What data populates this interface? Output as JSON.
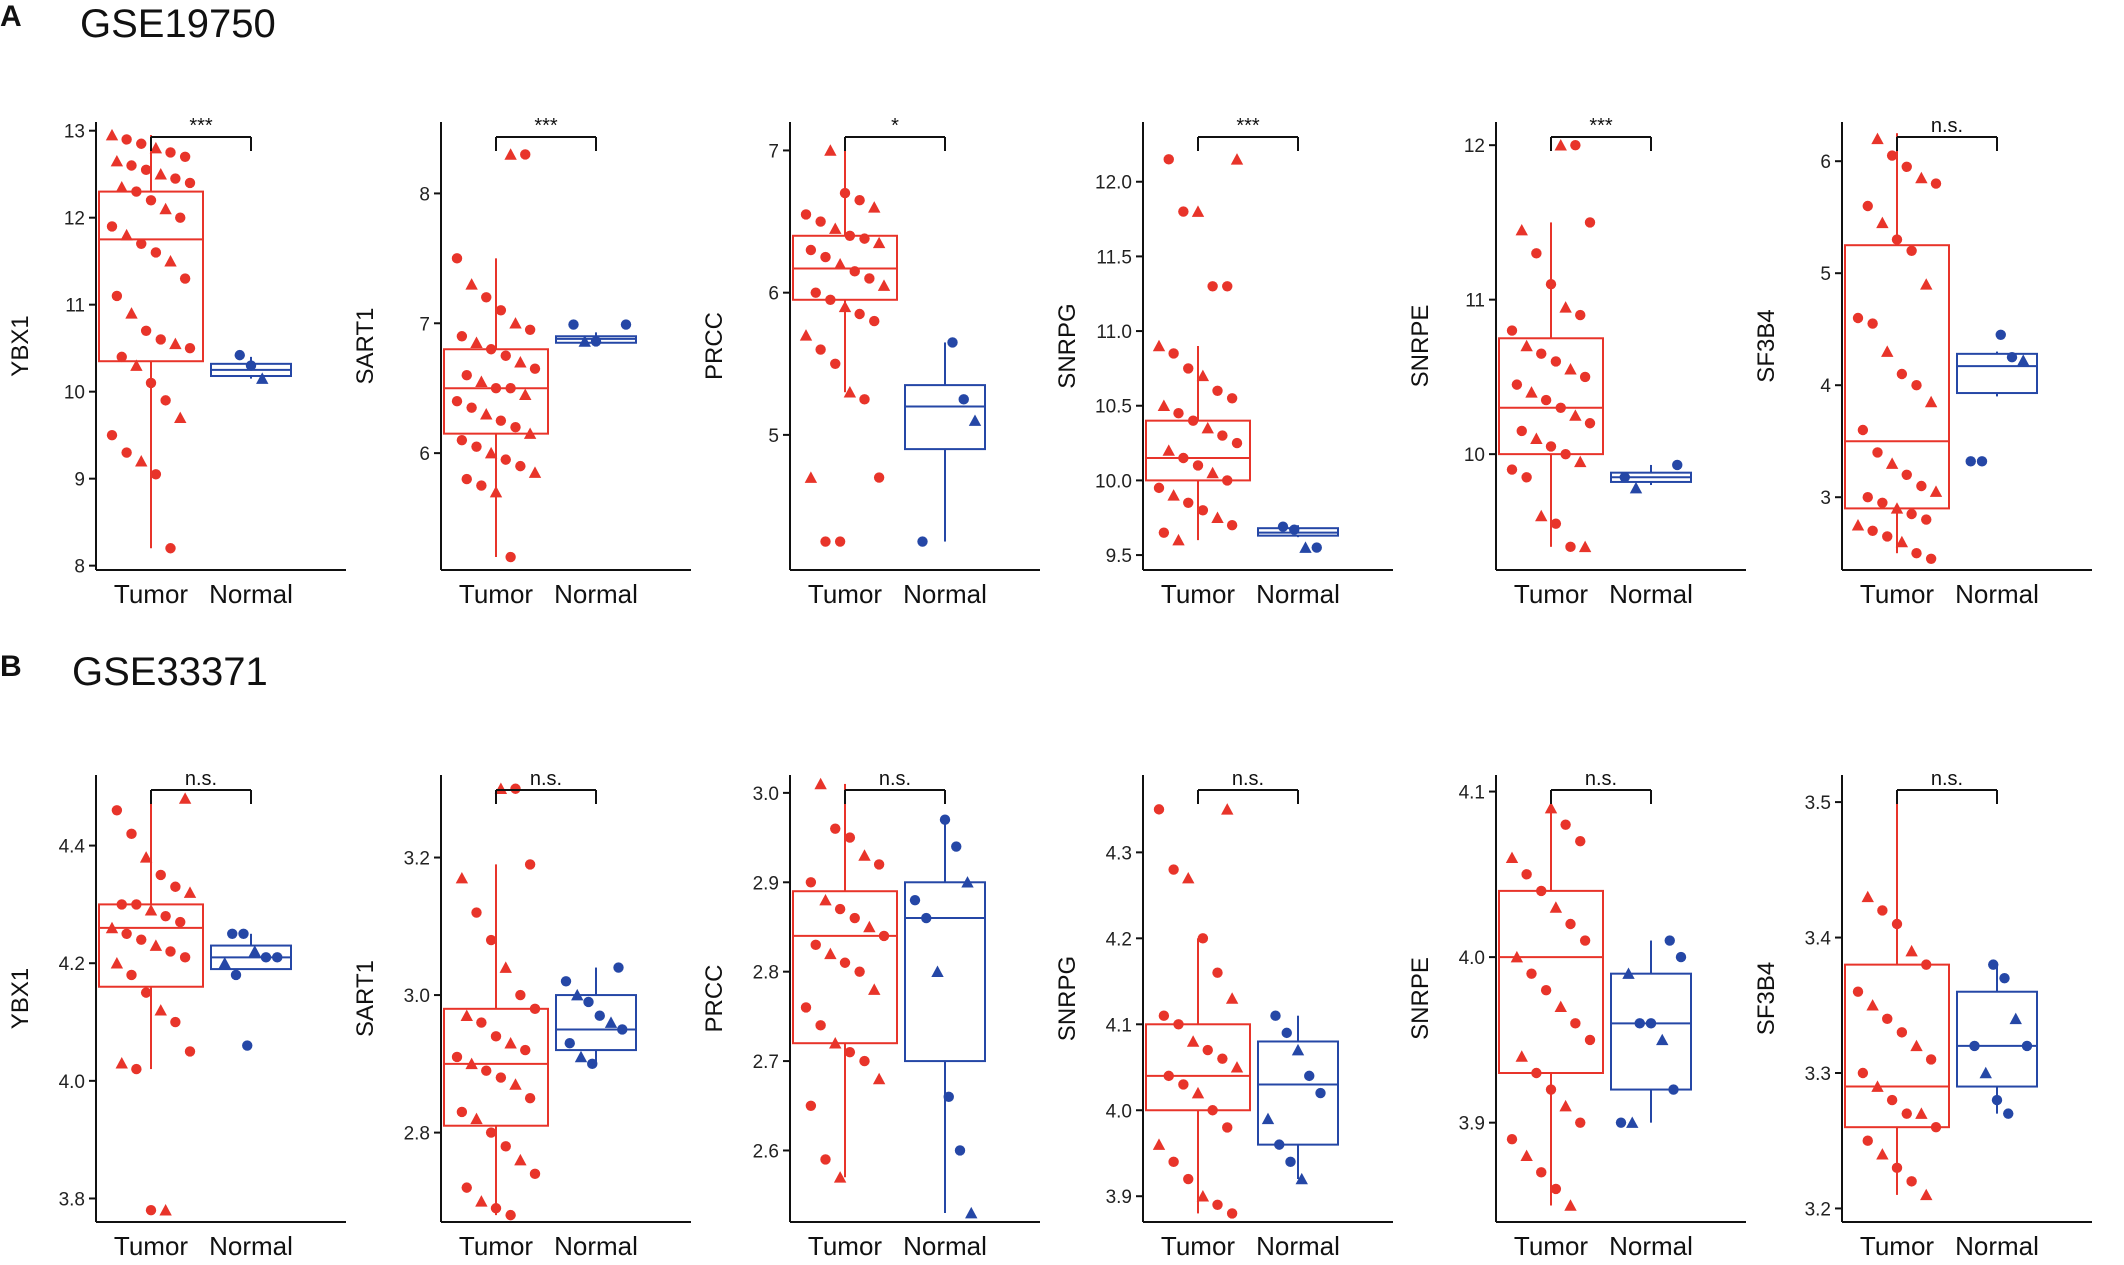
{
  "figure": {
    "colors": {
      "tumor": "#e8342a",
      "normal": "#2547a6",
      "axis": "#111111"
    },
    "panels": [
      {
        "letter": "A",
        "dataset": "GSE19750"
      },
      {
        "letter": "B",
        "dataset": "GSE33371"
      }
    ]
  },
  "chart_data": [
    {
      "type": "box",
      "panel": "A",
      "dataset": "GSE19750",
      "ylabel": "YBX1",
      "categories": [
        "Tumor",
        "Normal"
      ],
      "significance": "***",
      "yticks": [
        8,
        9,
        10,
        11,
        12,
        13
      ],
      "ylim": [
        7.95,
        13.1
      ],
      "series": [
        {
          "name": "Tumor",
          "min": 8.2,
          "q1": 10.35,
          "median": 11.75,
          "q3": 12.3,
          "max": 12.95,
          "points": [
            12.95,
            12.9,
            12.85,
            12.8,
            12.75,
            12.7,
            12.65,
            12.6,
            12.55,
            12.5,
            12.45,
            12.4,
            12.35,
            12.3,
            12.2,
            12.1,
            12.0,
            11.9,
            11.8,
            11.7,
            11.6,
            11.5,
            11.3,
            11.1,
            10.9,
            10.7,
            10.6,
            10.55,
            10.5,
            10.4,
            10.3,
            10.1,
            9.9,
            9.7,
            9.5,
            9.3,
            9.2,
            9.05,
            8.2
          ]
        },
        {
          "name": "Normal",
          "min": 10.15,
          "q1": 10.18,
          "median": 10.25,
          "q3": 10.32,
          "max": 10.4,
          "points": [
            10.42,
            10.3,
            10.15
          ]
        }
      ]
    },
    {
      "type": "box",
      "panel": "A",
      "dataset": "GSE19750",
      "ylabel": "SART1",
      "categories": [
        "Tumor",
        "Normal"
      ],
      "significance": "***",
      "yticks": [
        6,
        7,
        8
      ],
      "ylim": [
        5.1,
        8.55
      ],
      "series": [
        {
          "name": "Tumor",
          "min": 5.2,
          "q1": 6.15,
          "median": 6.5,
          "q3": 6.8,
          "max": 7.5,
          "points": [
            8.3,
            8.3,
            7.5,
            7.3,
            7.2,
            7.1,
            7.0,
            6.95,
            6.9,
            6.85,
            6.8,
            6.75,
            6.7,
            6.65,
            6.6,
            6.55,
            6.5,
            6.5,
            6.45,
            6.4,
            6.35,
            6.3,
            6.25,
            6.2,
            6.15,
            6.1,
            6.05,
            6.0,
            5.95,
            5.9,
            5.85,
            5.8,
            5.75,
            5.7,
            5.2
          ]
        },
        {
          "name": "Normal",
          "min": 6.83,
          "q1": 6.85,
          "median": 6.88,
          "q3": 6.9,
          "max": 6.93,
          "points": [
            6.99,
            6.99,
            6.86,
            6.86
          ]
        }
      ]
    },
    {
      "type": "box",
      "panel": "A",
      "dataset": "GSE19750",
      "ylabel": "PRCC",
      "categories": [
        "Tumor",
        "Normal"
      ],
      "significance": "*",
      "yticks": [
        5,
        6,
        7
      ],
      "ylim": [
        4.05,
        7.2
      ],
      "series": [
        {
          "name": "Tumor",
          "min": 5.3,
          "q1": 5.95,
          "median": 6.17,
          "q3": 6.4,
          "max": 7.0,
          "points": [
            7.0,
            6.7,
            6.65,
            6.6,
            6.55,
            6.5,
            6.45,
            6.4,
            6.38,
            6.35,
            6.3,
            6.25,
            6.2,
            6.15,
            6.1,
            6.05,
            6.0,
            5.95,
            5.9,
            5.85,
            5.8,
            5.7,
            5.6,
            5.5,
            5.3,
            5.25,
            4.7,
            4.7,
            4.25,
            4.25
          ]
        },
        {
          "name": "Normal",
          "min": 4.25,
          "q1": 4.9,
          "median": 5.2,
          "q3": 5.35,
          "max": 5.65,
          "points": [
            5.65,
            5.25,
            5.1,
            4.25
          ]
        }
      ]
    },
    {
      "type": "box",
      "panel": "A",
      "dataset": "GSE19750",
      "ylabel": "SNRPG",
      "categories": [
        "Tumor",
        "Normal"
      ],
      "significance": "***",
      "yticks": [
        9.5,
        10.0,
        10.5,
        11.0,
        11.5,
        12.0
      ],
      "ylim": [
        9.4,
        12.4
      ],
      "series": [
        {
          "name": "Tumor",
          "min": 9.6,
          "q1": 10.0,
          "median": 10.15,
          "q3": 10.4,
          "max": 10.9,
          "points": [
            12.15,
            12.15,
            11.8,
            11.8,
            11.3,
            11.3,
            10.9,
            10.85,
            10.75,
            10.7,
            10.6,
            10.55,
            10.5,
            10.45,
            10.4,
            10.35,
            10.3,
            10.25,
            10.2,
            10.15,
            10.1,
            10.05,
            10.0,
            9.95,
            9.9,
            9.85,
            9.8,
            9.75,
            9.7,
            9.65,
            9.6
          ]
        },
        {
          "name": "Normal",
          "min": 9.62,
          "q1": 9.63,
          "median": 9.65,
          "q3": 9.68,
          "max": 9.7,
          "points": [
            9.69,
            9.67,
            9.55,
            9.55
          ]
        }
      ]
    },
    {
      "type": "box",
      "panel": "A",
      "dataset": "GSE19750",
      "ylabel": "SNRPE",
      "categories": [
        "Tumor",
        "Normal"
      ],
      "significance": "***",
      "yticks": [
        10,
        11,
        12
      ],
      "ylim": [
        9.25,
        12.15
      ],
      "series": [
        {
          "name": "Tumor",
          "min": 9.4,
          "q1": 10.0,
          "median": 10.3,
          "q3": 10.75,
          "max": 11.5,
          "points": [
            12.0,
            12.0,
            11.5,
            11.45,
            11.3,
            11.1,
            10.95,
            10.9,
            10.8,
            10.7,
            10.65,
            10.6,
            10.55,
            10.5,
            10.45,
            10.4,
            10.35,
            10.3,
            10.25,
            10.2,
            10.15,
            10.1,
            10.05,
            10.0,
            9.95,
            9.9,
            9.85,
            9.6,
            9.55,
            9.4,
            9.4
          ]
        },
        {
          "name": "Normal",
          "min": 9.8,
          "q1": 9.82,
          "median": 9.85,
          "q3": 9.88,
          "max": 9.93,
          "points": [
            9.93,
            9.85,
            9.78
          ]
        }
      ]
    },
    {
      "type": "box",
      "panel": "A",
      "dataset": "GSE19750",
      "ylabel": "SF3B4",
      "categories": [
        "Tumor",
        "Normal"
      ],
      "significance": "n.s.",
      "yticks": [
        3,
        4,
        5,
        6
      ],
      "ylim": [
        2.35,
        6.35
      ],
      "series": [
        {
          "name": "Tumor",
          "min": 2.5,
          "q1": 2.9,
          "median": 3.5,
          "q3": 5.25,
          "max": 6.25,
          "points": [
            6.2,
            6.05,
            5.95,
            5.85,
            5.8,
            5.6,
            5.45,
            5.3,
            5.2,
            4.9,
            4.6,
            4.55,
            4.3,
            4.1,
            4.0,
            3.85,
            3.6,
            3.4,
            3.3,
            3.2,
            3.1,
            3.05,
            3.0,
            2.95,
            2.9,
            2.85,
            2.8,
            2.75,
            2.7,
            2.65,
            2.6,
            2.5,
            2.45
          ]
        },
        {
          "name": "Normal",
          "min": 3.9,
          "q1": 3.93,
          "median": 4.17,
          "q3": 4.28,
          "max": 4.3,
          "points": [
            4.45,
            4.25,
            4.22,
            3.32,
            3.32
          ]
        }
      ]
    },
    {
      "type": "box",
      "panel": "B",
      "dataset": "GSE33371",
      "ylabel": "YBX1",
      "categories": [
        "Tumor",
        "Normal"
      ],
      "significance": "n.s.",
      "yticks": [
        3.8,
        4.0,
        4.2,
        4.4
      ],
      "ylim": [
        3.76,
        4.52
      ],
      "series": [
        {
          "name": "Tumor",
          "min": 4.02,
          "q1": 4.16,
          "median": 4.26,
          "q3": 4.3,
          "max": 4.48,
          "points": [
            4.48,
            4.46,
            4.42,
            4.38,
            4.35,
            4.33,
            4.32,
            4.3,
            4.3,
            4.29,
            4.28,
            4.27,
            4.26,
            4.25,
            4.24,
            4.23,
            4.22,
            4.21,
            4.2,
            4.18,
            4.15,
            4.12,
            4.1,
            4.05,
            4.03,
            4.02,
            3.78,
            3.78
          ]
        },
        {
          "name": "Normal",
          "min": 4.19,
          "q1": 4.19,
          "median": 4.21,
          "q3": 4.23,
          "max": 4.25,
          "points": [
            4.25,
            4.25,
            4.22,
            4.21,
            4.21,
            4.2,
            4.18,
            4.06
          ]
        }
      ]
    },
    {
      "type": "box",
      "panel": "B",
      "dataset": "GSE33371",
      "ylabel": "SART1",
      "categories": [
        "Tumor",
        "Normal"
      ],
      "significance": "n.s.",
      "yticks": [
        2.8,
        3.0,
        3.2
      ],
      "ylim": [
        2.67,
        3.32
      ],
      "series": [
        {
          "name": "Tumor",
          "min": 2.68,
          "q1": 2.81,
          "median": 2.9,
          "q3": 2.98,
          "max": 3.19,
          "points": [
            3.3,
            3.3,
            3.19,
            3.17,
            3.12,
            3.08,
            3.04,
            3.0,
            2.98,
            2.97,
            2.96,
            2.94,
            2.93,
            2.92,
            2.91,
            2.9,
            2.89,
            2.88,
            2.87,
            2.85,
            2.83,
            2.82,
            2.8,
            2.78,
            2.76,
            2.74,
            2.72,
            2.7,
            2.69,
            2.68
          ]
        },
        {
          "name": "Normal",
          "min": 2.9,
          "q1": 2.92,
          "median": 2.95,
          "q3": 3.0,
          "max": 3.04,
          "points": [
            3.04,
            3.02,
            3.0,
            2.99,
            2.97,
            2.96,
            2.95,
            2.93,
            2.91,
            2.9
          ]
        }
      ]
    },
    {
      "type": "box",
      "panel": "B",
      "dataset": "GSE33371",
      "ylabel": "PRCC",
      "categories": [
        "Tumor",
        "Normal"
      ],
      "significance": "n.s.",
      "yticks": [
        2.6,
        2.7,
        2.8,
        2.9,
        3.0
      ],
      "ylim": [
        2.52,
        3.02
      ],
      "series": [
        {
          "name": "Tumor",
          "min": 2.57,
          "q1": 2.72,
          "median": 2.84,
          "q3": 2.89,
          "max": 3.01,
          "points": [
            3.01,
            2.96,
            2.95,
            2.93,
            2.92,
            2.9,
            2.88,
            2.87,
            2.86,
            2.85,
            2.84,
            2.83,
            2.82,
            2.81,
            2.8,
            2.78,
            2.76,
            2.74,
            2.72,
            2.71,
            2.7,
            2.68,
            2.65,
            2.59,
            2.57
          ]
        },
        {
          "name": "Normal",
          "min": 2.53,
          "q1": 2.7,
          "median": 2.86,
          "q3": 2.9,
          "max": 2.97,
          "points": [
            2.97,
            2.94,
            2.9,
            2.88,
            2.86,
            2.8,
            2.66,
            2.6,
            2.53
          ]
        }
      ]
    },
    {
      "type": "box",
      "panel": "B",
      "dataset": "GSE33371",
      "ylabel": "SNRPG",
      "categories": [
        "Tumor",
        "Normal"
      ],
      "significance": "n.s.",
      "yticks": [
        3.9,
        4.0,
        4.1,
        4.2,
        4.3
      ],
      "ylim": [
        3.87,
        4.39
      ],
      "series": [
        {
          "name": "Tumor",
          "min": 3.88,
          "q1": 4.0,
          "median": 4.04,
          "q3": 4.1,
          "max": 4.2,
          "points": [
            4.35,
            4.35,
            4.28,
            4.27,
            4.2,
            4.16,
            4.13,
            4.11,
            4.1,
            4.08,
            4.07,
            4.06,
            4.05,
            4.04,
            4.03,
            4.02,
            4.0,
            3.98,
            3.96,
            3.94,
            3.92,
            3.9,
            3.89,
            3.88
          ]
        },
        {
          "name": "Normal",
          "min": 3.92,
          "q1": 3.96,
          "median": 4.03,
          "q3": 4.08,
          "max": 4.11,
          "points": [
            4.11,
            4.09,
            4.07,
            4.04,
            4.02,
            3.99,
            3.96,
            3.94,
            3.92
          ]
        }
      ]
    },
    {
      "type": "box",
      "panel": "B",
      "dataset": "GSE33371",
      "ylabel": "SNRPE",
      "categories": [
        "Tumor",
        "Normal"
      ],
      "significance": "n.s.",
      "yticks": [
        3.9,
        4.0,
        4.1
      ],
      "ylim": [
        3.84,
        4.11
      ],
      "series": [
        {
          "name": "Tumor",
          "min": 3.85,
          "q1": 3.93,
          "median": 4.0,
          "q3": 4.04,
          "max": 4.09,
          "points": [
            4.09,
            4.08,
            4.07,
            4.06,
            4.05,
            4.04,
            4.03,
            4.02,
            4.01,
            4.0,
            3.99,
            3.98,
            3.97,
            3.96,
            3.95,
            3.94,
            3.93,
            3.92,
            3.91,
            3.9,
            3.89,
            3.88,
            3.87,
            3.86,
            3.85
          ]
        },
        {
          "name": "Normal",
          "min": 3.9,
          "q1": 3.92,
          "median": 3.96,
          "q3": 3.99,
          "max": 4.01,
          "points": [
            4.01,
            4.0,
            3.99,
            3.96,
            3.96,
            3.95,
            3.92,
            3.9,
            3.9
          ]
        }
      ]
    },
    {
      "type": "box",
      "panel": "B",
      "dataset": "GSE33371",
      "ylabel": "SF3B4",
      "categories": [
        "Tumor",
        "Normal"
      ],
      "significance": "n.s.",
      "yticks": [
        3.2,
        3.3,
        3.4,
        3.5
      ],
      "ylim": [
        3.19,
        3.52
      ],
      "series": [
        {
          "name": "Tumor",
          "min": 3.21,
          "q1": 3.26,
          "median": 3.29,
          "q3": 3.38,
          "max": 3.5,
          "points": [
            3.43,
            3.42,
            3.41,
            3.39,
            3.38,
            3.36,
            3.35,
            3.34,
            3.33,
            3.32,
            3.31,
            3.3,
            3.29,
            3.28,
            3.27,
            3.27,
            3.26,
            3.25,
            3.24,
            3.23,
            3.22,
            3.21
          ]
        },
        {
          "name": "Normal",
          "min": 3.27,
          "q1": 3.29,
          "median": 3.32,
          "q3": 3.36,
          "max": 3.38,
          "points": [
            3.38,
            3.37,
            3.34,
            3.32,
            3.32,
            3.3,
            3.28,
            3.27
          ]
        }
      ]
    }
  ]
}
